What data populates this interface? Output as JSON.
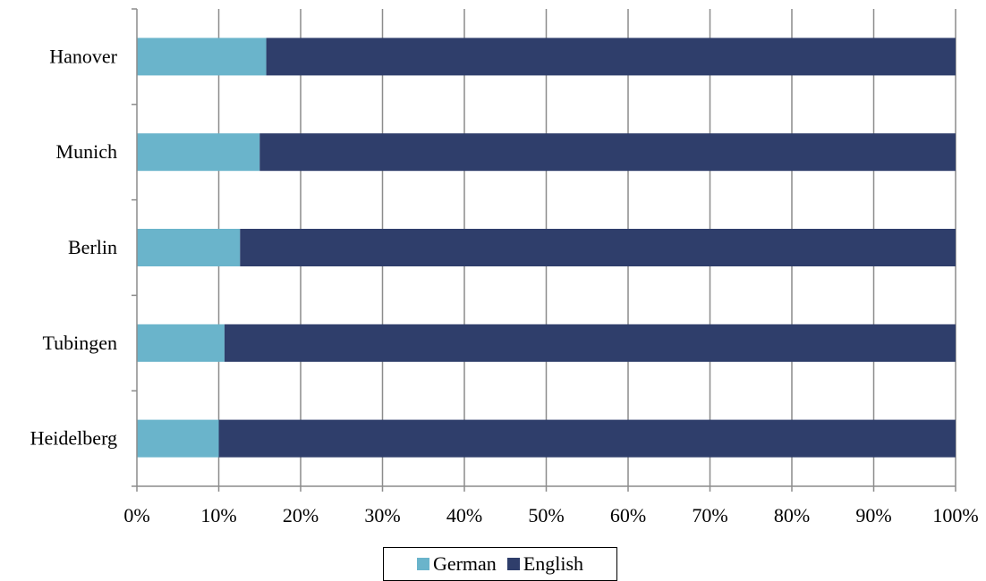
{
  "chart_data": {
    "type": "bar",
    "orientation": "horizontal",
    "stacked": "percent",
    "categories": [
      "Hanover",
      "Munich",
      "Berlin",
      "Tubingen",
      "Heidelberg"
    ],
    "series": [
      {
        "name": "German",
        "color": "#6ab4cb",
        "values": [
          15.8,
          15.0,
          12.6,
          10.7,
          10.0
        ]
      },
      {
        "name": "English",
        "color": "#2f3e6b",
        "values": [
          84.2,
          85.0,
          87.4,
          89.3,
          90.0
        ]
      }
    ],
    "x_ticks": [
      "0%",
      "10%",
      "20%",
      "30%",
      "40%",
      "50%",
      "60%",
      "70%",
      "80%",
      "90%",
      "100%"
    ],
    "xlim": [
      0,
      100
    ],
    "grid": true,
    "legend": "bottom"
  }
}
